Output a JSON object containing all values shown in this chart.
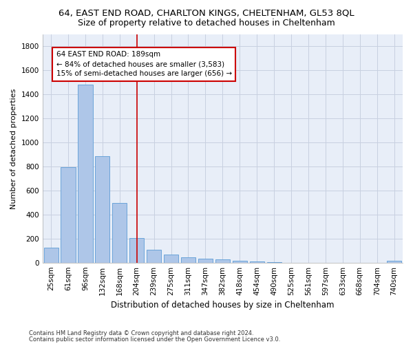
{
  "title1": "64, EAST END ROAD, CHARLTON KINGS, CHELTENHAM, GL53 8QL",
  "title2": "Size of property relative to detached houses in Cheltenham",
  "xlabel": "Distribution of detached houses by size in Cheltenham",
  "ylabel": "Number of detached properties",
  "footnote1": "Contains HM Land Registry data © Crown copyright and database right 2024.",
  "footnote2": "Contains public sector information licensed under the Open Government Licence v3.0.",
  "categories": [
    "25sqm",
    "61sqm",
    "96sqm",
    "132sqm",
    "168sqm",
    "204sqm",
    "239sqm",
    "275sqm",
    "311sqm",
    "347sqm",
    "382sqm",
    "418sqm",
    "454sqm",
    "490sqm",
    "525sqm",
    "561sqm",
    "597sqm",
    "633sqm",
    "668sqm",
    "704sqm",
    "740sqm"
  ],
  "values": [
    125,
    795,
    1480,
    885,
    495,
    205,
    105,
    65,
    42,
    35,
    28,
    18,
    8,
    3,
    1,
    1,
    0,
    0,
    0,
    0,
    18
  ],
  "bar_color": "#aec6e8",
  "bar_edge_color": "#5b9bd5",
  "vline_index": 5,
  "annotation_title": "64 EAST END ROAD: 189sqm",
  "annotation_line1": "← 84% of detached houses are smaller (3,583)",
  "annotation_line2": "15% of semi-detached houses are larger (656) →",
  "annotation_box_color": "#ffffff",
  "annotation_box_edge": "#cc0000",
  "vline_color": "#cc0000",
  "ylim": [
    0,
    1900
  ],
  "yticks": [
    0,
    200,
    400,
    600,
    800,
    1000,
    1200,
    1400,
    1600,
    1800
  ],
  "background_color": "#e8eef8",
  "grid_color": "#c8d0e0",
  "title1_fontsize": 9.5,
  "title2_fontsize": 9,
  "xlabel_fontsize": 8.5,
  "ylabel_fontsize": 8,
  "tick_fontsize": 7.5,
  "annotation_fontsize": 7.5,
  "footnote_fontsize": 6
}
